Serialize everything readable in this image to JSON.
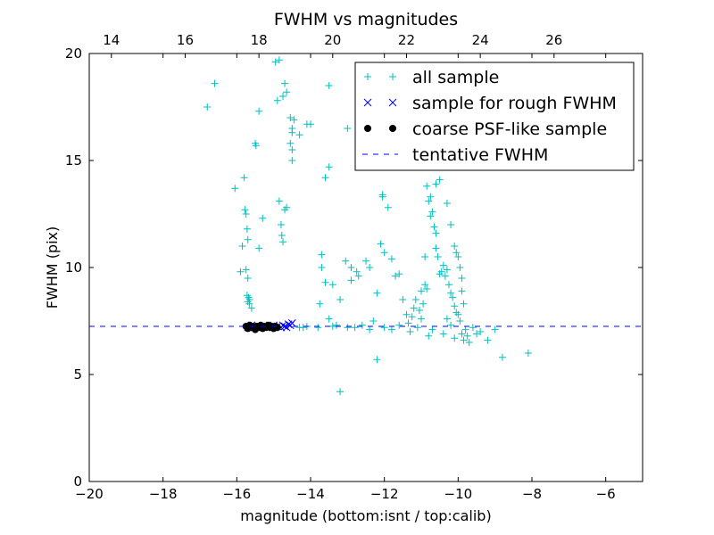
{
  "chart_data": {
    "type": "scatter",
    "title": "FWHM vs magnitudes",
    "xlabel": "magnitude (bottom:isnt / top:calib)",
    "ylabel": "FWHM (pix)",
    "xlim": [
      -20,
      -5
    ],
    "ylim": [
      0,
      20
    ],
    "top_axis_offset": 33.4,
    "x_ticks": [
      "−20",
      "−18",
      "−16",
      "−14",
      "−12",
      "−10",
      "−8",
      "−6"
    ],
    "x_tick_values": [
      -20,
      -18,
      -16,
      -14,
      -12,
      -10,
      -8,
      -6
    ],
    "top_ticks": [
      "14",
      "16",
      "18",
      "20",
      "22",
      "24",
      "26"
    ],
    "top_tick_values": [
      14,
      16,
      18,
      20,
      22,
      24,
      26
    ],
    "y_ticks": [
      "0",
      "5",
      "10",
      "15",
      "20"
    ],
    "y_tick_values": [
      0,
      5,
      10,
      15,
      20
    ],
    "legend": [
      "all sample",
      "sample for rough FWHM",
      "coarse PSF-like sample",
      "tentative FWHM"
    ],
    "legend_position": "top-right",
    "tentative_fwhm": 7.25,
    "colors": {
      "all_sample": "#00bfbf",
      "rough": "#0000ff",
      "coarse": "#000000",
      "tentative": "#0000ff"
    },
    "series": [
      {
        "name": "all sample",
        "marker": "plus",
        "points": [
          [
            -16.8,
            17.5
          ],
          [
            -16.6,
            18.6
          ],
          [
            -16.05,
            13.7
          ],
          [
            -15.9,
            9.8
          ],
          [
            -15.85,
            11.0
          ],
          [
            -15.8,
            14.2
          ],
          [
            -15.78,
            12.7
          ],
          [
            -15.75,
            12.5
          ],
          [
            -15.72,
            11.8
          ],
          [
            -15.7,
            11.3
          ],
          [
            -15.75,
            9.9
          ],
          [
            -15.7,
            9.5
          ],
          [
            -15.72,
            8.7
          ],
          [
            -15.68,
            8.6
          ],
          [
            -15.7,
            8.4
          ],
          [
            -15.66,
            8.3
          ],
          [
            -15.65,
            8.5
          ],
          [
            -15.6,
            8.1
          ],
          [
            -15.5,
            15.8
          ],
          [
            -15.48,
            15.7
          ],
          [
            -15.4,
            17.3
          ],
          [
            -15.3,
            12.3
          ],
          [
            -15.4,
            10.9
          ],
          [
            -15.2,
            7.3
          ],
          [
            -14.95,
            19.6
          ],
          [
            -14.85,
            19.7
          ],
          [
            -14.75,
            18.0
          ],
          [
            -14.9,
            17.8
          ],
          [
            -14.7,
            18.6
          ],
          [
            -14.65,
            18.2
          ],
          [
            -14.85,
            13.1
          ],
          [
            -14.8,
            12.0
          ],
          [
            -14.78,
            11.5
          ],
          [
            -14.75,
            11.2
          ],
          [
            -14.7,
            12.7
          ],
          [
            -14.65,
            12.8
          ],
          [
            -14.55,
            17.0
          ],
          [
            -14.5,
            16.5
          ],
          [
            -14.45,
            16.9
          ],
          [
            -14.5,
            16.3
          ],
          [
            -14.55,
            15.8
          ],
          [
            -14.5,
            15.5
          ],
          [
            -14.5,
            15.0
          ],
          [
            -14.3,
            16.2
          ],
          [
            -14.1,
            16.7
          ],
          [
            -14.0,
            16.7
          ],
          [
            -13.5,
            18.5
          ],
          [
            -13.5,
            14.7
          ],
          [
            -13.6,
            14.2
          ],
          [
            -13.7,
            10.6
          ],
          [
            -13.7,
            10.0
          ],
          [
            -13.6,
            9.3
          ],
          [
            -13.75,
            8.3
          ],
          [
            -13.5,
            7.6
          ],
          [
            -13.3,
            7.3
          ],
          [
            -13.2,
            8.5
          ],
          [
            -13.2,
            4.2
          ],
          [
            -13.0,
            16.5
          ],
          [
            -13.05,
            10.3
          ],
          [
            -12.9,
            10.0
          ],
          [
            -12.7,
            9.6
          ],
          [
            -12.75,
            9.8
          ],
          [
            -12.5,
            10.3
          ],
          [
            -12.4,
            10.0
          ],
          [
            -12.2,
            8.8
          ],
          [
            -12.3,
            7.5
          ],
          [
            -12.2,
            5.7
          ],
          [
            -12.1,
            11.1
          ],
          [
            -12.05,
            13.4
          ],
          [
            -12.05,
            13.3
          ],
          [
            -12.0,
            10.7
          ],
          [
            -11.9,
            12.8
          ],
          [
            -11.8,
            10.4
          ],
          [
            -11.7,
            9.6
          ],
          [
            -11.6,
            9.7
          ],
          [
            -11.5,
            8.5
          ],
          [
            -11.4,
            7.8
          ],
          [
            -11.35,
            7.4
          ],
          [
            -11.25,
            7.7
          ],
          [
            -11.2,
            8.1
          ],
          [
            -11.15,
            8.5
          ],
          [
            -11.05,
            8.0
          ],
          [
            -11.0,
            8.9
          ],
          [
            -10.95,
            8.3
          ],
          [
            -11.0,
            7.6
          ],
          [
            -10.9,
            10.5
          ],
          [
            -10.9,
            9.2
          ],
          [
            -10.85,
            9.0
          ],
          [
            -10.85,
            13.8
          ],
          [
            -10.8,
            13.1
          ],
          [
            -10.75,
            13.3
          ],
          [
            -10.75,
            12.4
          ],
          [
            -10.7,
            12.6
          ],
          [
            -10.65,
            11.9
          ],
          [
            -10.6,
            11.6
          ],
          [
            -10.6,
            10.9
          ],
          [
            -10.55,
            10.5
          ],
          [
            -10.5,
            9.7
          ],
          [
            -10.45,
            9.8
          ],
          [
            -10.4,
            10.1
          ],
          [
            -10.35,
            9.6
          ],
          [
            -10.3,
            9.9
          ],
          [
            -10.25,
            9.2
          ],
          [
            -10.2,
            8.8
          ],
          [
            -10.15,
            8.6
          ],
          [
            -10.1,
            8.2
          ],
          [
            -10.05,
            7.9
          ],
          [
            -10.0,
            7.8
          ],
          [
            -9.95,
            7.5
          ],
          [
            -9.9,
            6.9
          ],
          [
            -9.85,
            6.6
          ],
          [
            -9.8,
            7.1
          ],
          [
            -9.75,
            6.8
          ],
          [
            -9.7,
            6.5
          ],
          [
            -9.6,
            7.2
          ],
          [
            -9.5,
            6.9
          ],
          [
            -9.4,
            7.0
          ],
          [
            -9.2,
            6.6
          ],
          [
            -9.0,
            7.1
          ],
          [
            -8.8,
            5.8
          ],
          [
            -8.1,
            6.0
          ],
          [
            -10.6,
            13.9
          ],
          [
            -10.5,
            14.1
          ],
          [
            -10.3,
            13.0
          ],
          [
            -10.2,
            12.0
          ],
          [
            -10.1,
            11.0
          ],
          [
            -10.05,
            10.7
          ],
          [
            -10.0,
            10.5
          ],
          [
            -9.95,
            10.0
          ],
          [
            -9.9,
            9.5
          ],
          [
            -9.9,
            8.9
          ],
          [
            -9.85,
            8.3
          ],
          [
            -11.6,
            7.3
          ],
          [
            -11.8,
            7.1
          ],
          [
            -12.0,
            7.2
          ],
          [
            -12.4,
            7.1
          ],
          [
            -12.8,
            7.2
          ],
          [
            -13.0,
            7.2
          ],
          [
            -13.4,
            7.25
          ],
          [
            -13.8,
            7.2
          ],
          [
            -14.1,
            7.25
          ],
          [
            -14.3,
            7.2
          ],
          [
            -12.6,
            7.3
          ],
          [
            -11.3,
            7.0
          ],
          [
            -10.7,
            7.1
          ],
          [
            -10.4,
            6.9
          ],
          [
            -10.2,
            7.3
          ],
          [
            -10.1,
            6.7
          ],
          [
            -10.8,
            6.8
          ],
          [
            -11.1,
            7.2
          ],
          [
            -12.9,
            9.4
          ],
          [
            -13.4,
            9.2
          ],
          [
            -14.2,
            7.2
          ],
          [
            -10.3,
            7.6
          ]
        ]
      },
      {
        "name": "sample for rough FWHM",
        "marker": "x",
        "points": [
          [
            -15.7,
            7.2
          ],
          [
            -15.6,
            7.3
          ],
          [
            -15.4,
            7.25
          ],
          [
            -15.2,
            7.2
          ],
          [
            -15.0,
            7.3
          ],
          [
            -14.9,
            7.25
          ],
          [
            -14.8,
            7.2
          ],
          [
            -14.75,
            7.3
          ],
          [
            -14.7,
            7.25
          ],
          [
            -14.65,
            7.2
          ],
          [
            -14.6,
            7.35
          ],
          [
            -14.55,
            7.3
          ],
          [
            -14.5,
            7.4
          ]
        ]
      },
      {
        "name": "coarse PSF-like sample",
        "marker": "dot",
        "points": [
          [
            -15.75,
            7.25
          ],
          [
            -15.7,
            7.15
          ],
          [
            -15.65,
            7.3
          ],
          [
            -15.6,
            7.2
          ],
          [
            -15.55,
            7.25
          ],
          [
            -15.5,
            7.1
          ],
          [
            -15.45,
            7.25
          ],
          [
            -15.4,
            7.2
          ],
          [
            -15.35,
            7.3
          ],
          [
            -15.3,
            7.15
          ],
          [
            -15.25,
            7.25
          ],
          [
            -15.2,
            7.2
          ],
          [
            -15.15,
            7.3
          ],
          [
            -15.1,
            7.2
          ],
          [
            -15.05,
            7.25
          ],
          [
            -15.0,
            7.15
          ],
          [
            -14.95,
            7.25
          ],
          [
            -14.9,
            7.2
          ]
        ]
      }
    ]
  }
}
